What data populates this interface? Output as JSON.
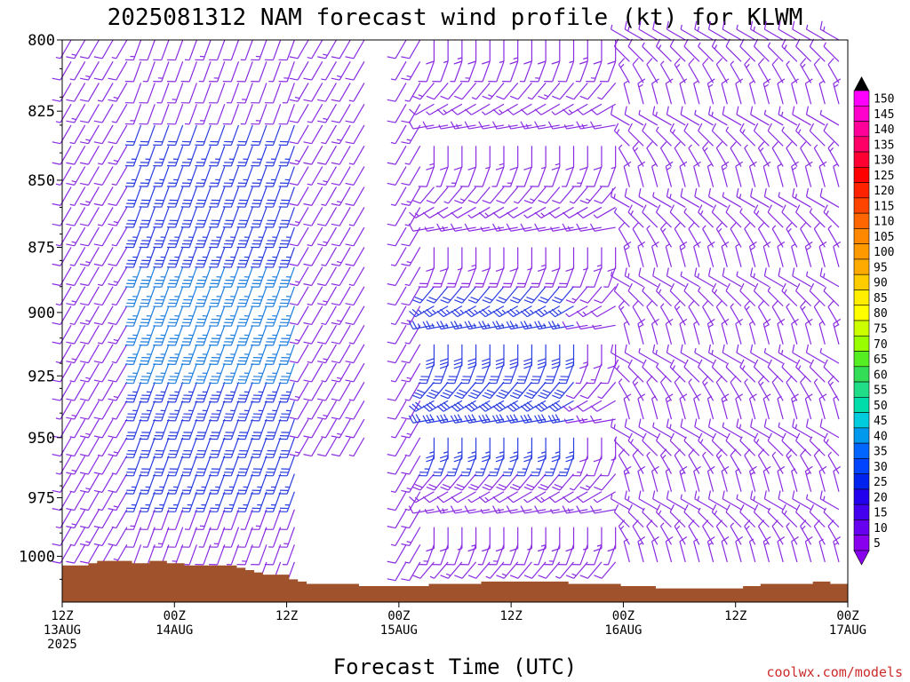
{
  "title": "2025081312 NAM forecast wind profile (kt) for KLWM",
  "xlabel": "Forecast Time (UTC)",
  "credit": "coolwx.com/models",
  "colors": {
    "ground": "#a0522d",
    "barb_low": "#8a2be2",
    "barb_mid": "#2a3de0",
    "barb_high": "#1e7fe0"
  },
  "chart_data": {
    "type": "wind-barb-profile",
    "title": "2025081312 NAM forecast wind profile (kt) for KLWM",
    "xlabel": "Forecast Time (UTC)",
    "ylabel": "",
    "y_axis": {
      "inverted": true,
      "range": [
        800,
        1020
      ],
      "ticks": [
        "800",
        "825",
        "850",
        "875",
        "900",
        "925",
        "950",
        "975",
        "1000"
      ]
    },
    "x_axis": {
      "ticks": [
        {
          "label": "12Z",
          "sub": "13AUG",
          "sub2": "2025"
        },
        {
          "label": "00Z",
          "sub": "14AUG",
          "sub2": ""
        },
        {
          "label": "12Z",
          "sub": "",
          "sub2": ""
        },
        {
          "label": "00Z",
          "sub": "15AUG",
          "sub2": ""
        },
        {
          "label": "12Z",
          "sub": "",
          "sub2": ""
        },
        {
          "label": "00Z",
          "sub": "16AUG",
          "sub2": ""
        },
        {
          "label": "12Z",
          "sub": "",
          "sub2": ""
        },
        {
          "label": "00Z",
          "sub": "17AUG",
          "sub2": ""
        }
      ]
    },
    "colorbar": {
      "labels": [
        "150",
        "145",
        "140",
        "135",
        "130",
        "125",
        "120",
        "115",
        "110",
        "105",
        "100",
        "95",
        "90",
        "85",
        "80",
        "75",
        "70",
        "65",
        "60",
        "55",
        "50",
        "45",
        "40",
        "35",
        "30",
        "25",
        "20",
        "15",
        "10",
        "5"
      ],
      "colors": [
        "#ff00ff",
        "#ff00cc",
        "#ff0099",
        "#ff0066",
        "#ff0033",
        "#ff0000",
        "#ff2200",
        "#ff4400",
        "#ff6600",
        "#ff8800",
        "#ff9900",
        "#ffaa00",
        "#ffcc00",
        "#ffee00",
        "#ffff00",
        "#ccff00",
        "#99ff00",
        "#55ee22",
        "#33dd55",
        "#22dd88",
        "#00ddaa",
        "#00ccdd",
        "#0099ee",
        "#0066ff",
        "#0044ff",
        "#0022ee",
        "#2200ee",
        "#4400ee",
        "#6600ee",
        "#8800ee"
      ]
    },
    "surface_pressure_hpa": [
      1004,
      1004,
      1004,
      1003,
      1002,
      1002,
      1002,
      1002,
      1003,
      1003,
      1002,
      1002,
      1003,
      1003,
      1004,
      1004,
      1004,
      1004,
      1004,
      1004,
      1005,
      1006,
      1007,
      1008,
      1008,
      1008,
      1010,
      1011,
      1012,
      1012,
      1012,
      1012,
      1012,
      1012,
      1013,
      1013,
      1013,
      1013,
      1013,
      1013,
      1013,
      1013,
      1012,
      1012,
      1012,
      1012,
      1012,
      1012,
      1011,
      1011,
      1011,
      1011,
      1011,
      1011,
      1011,
      1011,
      1011,
      1011,
      1012,
      1012,
      1012,
      1012,
      1012,
      1012,
      1013,
      1013,
      1013,
      1013,
      1014,
      1014,
      1014,
      1014,
      1014,
      1014,
      1014,
      1014,
      1014,
      1014,
      1013,
      1013,
      1012,
      1012,
      1012,
      1012,
      1012,
      1012,
      1011,
      1011,
      1012,
      1012
    ],
    "notes": "Wind barbs at each forecast hour and pressure level; strongest winds (~30-40 kt, blue) near 850-950 hPa on 14AUG and 15AUG."
  }
}
